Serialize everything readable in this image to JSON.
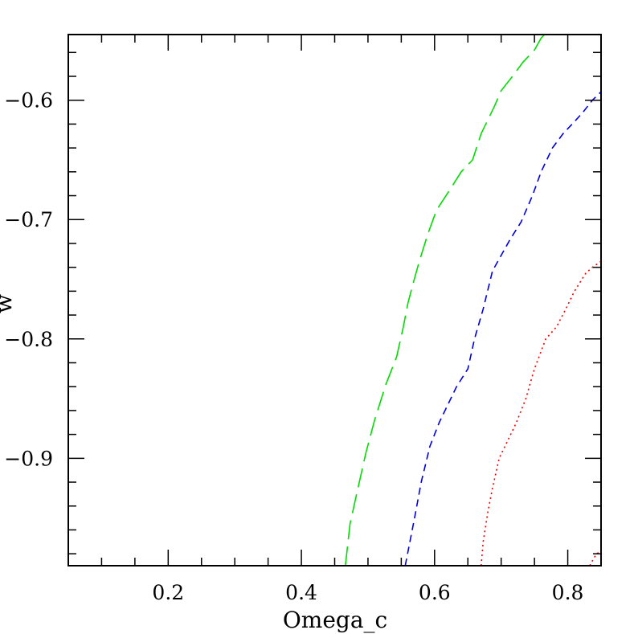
{
  "chart_data": {
    "type": "line",
    "title": "",
    "xlabel": "Omega_c",
    "ylabel": "w",
    "xlim": [
      0.05,
      0.85
    ],
    "ylim": [
      -0.99,
      -0.545
    ],
    "x_ticks": [
      {
        "value": 0.2,
        "label": "0.2"
      },
      {
        "value": 0.4,
        "label": "0.4"
      },
      {
        "value": 0.6,
        "label": "0.6"
      },
      {
        "value": 0.8,
        "label": "0.8"
      }
    ],
    "y_ticks": [
      {
        "value": -0.6,
        "label": "−0.6"
      },
      {
        "value": -0.7,
        "label": "−0.7"
      },
      {
        "value": -0.8,
        "label": "−0.8"
      },
      {
        "value": -0.9,
        "label": "−0.9"
      }
    ],
    "x_minor_step": 0.05,
    "y_minor_step": 0.02,
    "grid": false,
    "series": [
      {
        "color": "#00dd00",
        "dash": "24 9",
        "points": [
          [
            0.466,
            -0.99
          ],
          [
            0.473,
            -0.955
          ],
          [
            0.483,
            -0.93
          ],
          [
            0.497,
            -0.895
          ],
          [
            0.51,
            -0.868
          ],
          [
            0.527,
            -0.838
          ],
          [
            0.543,
            -0.815
          ],
          [
            0.553,
            -0.79
          ],
          [
            0.56,
            -0.77
          ],
          [
            0.567,
            -0.755
          ],
          [
            0.577,
            -0.735
          ],
          [
            0.59,
            -0.712
          ],
          [
            0.603,
            -0.692
          ],
          [
            0.623,
            -0.675
          ],
          [
            0.64,
            -0.66
          ],
          [
            0.657,
            -0.65
          ],
          [
            0.67,
            -0.628
          ],
          [
            0.69,
            -0.605
          ],
          [
            0.7,
            -0.592
          ],
          [
            0.717,
            -0.58
          ],
          [
            0.733,
            -0.568
          ],
          [
            0.75,
            -0.558
          ],
          [
            0.76,
            -0.548
          ],
          [
            0.765,
            -0.545
          ]
        ]
      },
      {
        "color": "#0000dd",
        "dash": "9 6",
        "points": [
          [
            0.556,
            -0.99
          ],
          [
            0.563,
            -0.97
          ],
          [
            0.57,
            -0.95
          ],
          [
            0.58,
            -0.92
          ],
          [
            0.593,
            -0.89
          ],
          [
            0.607,
            -0.87
          ],
          [
            0.62,
            -0.855
          ],
          [
            0.633,
            -0.84
          ],
          [
            0.65,
            -0.825
          ],
          [
            0.66,
            -0.8
          ],
          [
            0.673,
            -0.775
          ],
          [
            0.687,
            -0.743
          ],
          [
            0.697,
            -0.733
          ],
          [
            0.713,
            -0.717
          ],
          [
            0.73,
            -0.702
          ],
          [
            0.747,
            -0.68
          ],
          [
            0.76,
            -0.66
          ],
          [
            0.777,
            -0.64
          ],
          [
            0.793,
            -0.628
          ],
          [
            0.81,
            -0.618
          ],
          [
            0.823,
            -0.61
          ],
          [
            0.837,
            -0.6
          ],
          [
            0.85,
            -0.593
          ]
        ]
      },
      {
        "color": "#ee0000",
        "dash": "2 4",
        "points": [
          [
            0.67,
            -0.99
          ],
          [
            0.673,
            -0.97
          ],
          [
            0.68,
            -0.945
          ],
          [
            0.687,
            -0.925
          ],
          [
            0.697,
            -0.9
          ],
          [
            0.71,
            -0.885
          ],
          [
            0.723,
            -0.87
          ],
          [
            0.737,
            -0.85
          ],
          [
            0.75,
            -0.825
          ],
          [
            0.767,
            -0.8
          ],
          [
            0.783,
            -0.79
          ],
          [
            0.797,
            -0.775
          ],
          [
            0.81,
            -0.76
          ],
          [
            0.827,
            -0.745
          ],
          [
            0.837,
            -0.74
          ],
          [
            0.85,
            -0.735
          ]
        ]
      },
      {
        "color": "#ee0000",
        "dash": "2 4",
        "points": [
          [
            0.833,
            -0.99
          ],
          [
            0.843,
            -0.98
          ],
          [
            0.85,
            -0.978
          ]
        ]
      }
    ]
  }
}
